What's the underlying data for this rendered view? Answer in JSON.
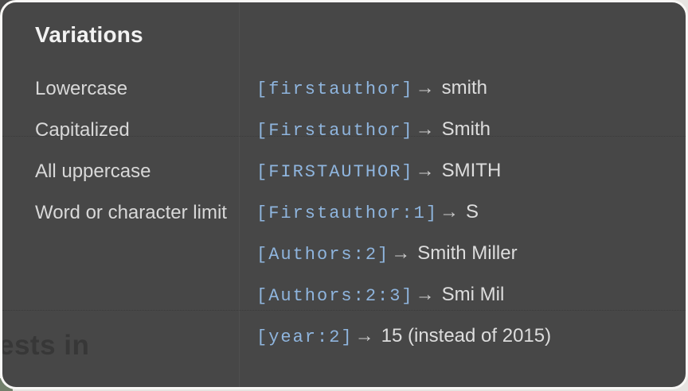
{
  "panel": {
    "title": "Variations",
    "arrow": "→",
    "rows": [
      {
        "label": "Lowercase",
        "code": "[firstauthor]",
        "result": "smith"
      },
      {
        "label": "Capitalized",
        "code": "[Firstauthor]",
        "result": "Smith"
      },
      {
        "label": "All uppercase",
        "code": "[FIRSTAUTHOR]",
        "result": "SMITH"
      },
      {
        "label": "Word or character limit",
        "code": "[Firstauthor:1]",
        "result": "S"
      },
      {
        "label": "",
        "code": "[Authors:2]",
        "result": "Smith Miller"
      },
      {
        "label": "",
        "code": "[Authors:2:3]",
        "result": "Smi Mil"
      },
      {
        "label": "",
        "code": "[year:2]",
        "result": "15 (instead of 2015)"
      }
    ]
  },
  "underlay": {
    "partial_text": "ests in"
  },
  "colors": {
    "panel_background": "#474747",
    "panel_border": "#f8f7f5",
    "page_background": "#e6e4e1",
    "code_blue": "#8fb5de",
    "label_gray": "#d8d8d8",
    "result_gray": "#dddddd",
    "title_white": "#f2f2f2",
    "corner_green": "#72806b",
    "corner_dark": "#4b4b4b",
    "underlay_text": "#373737"
  }
}
